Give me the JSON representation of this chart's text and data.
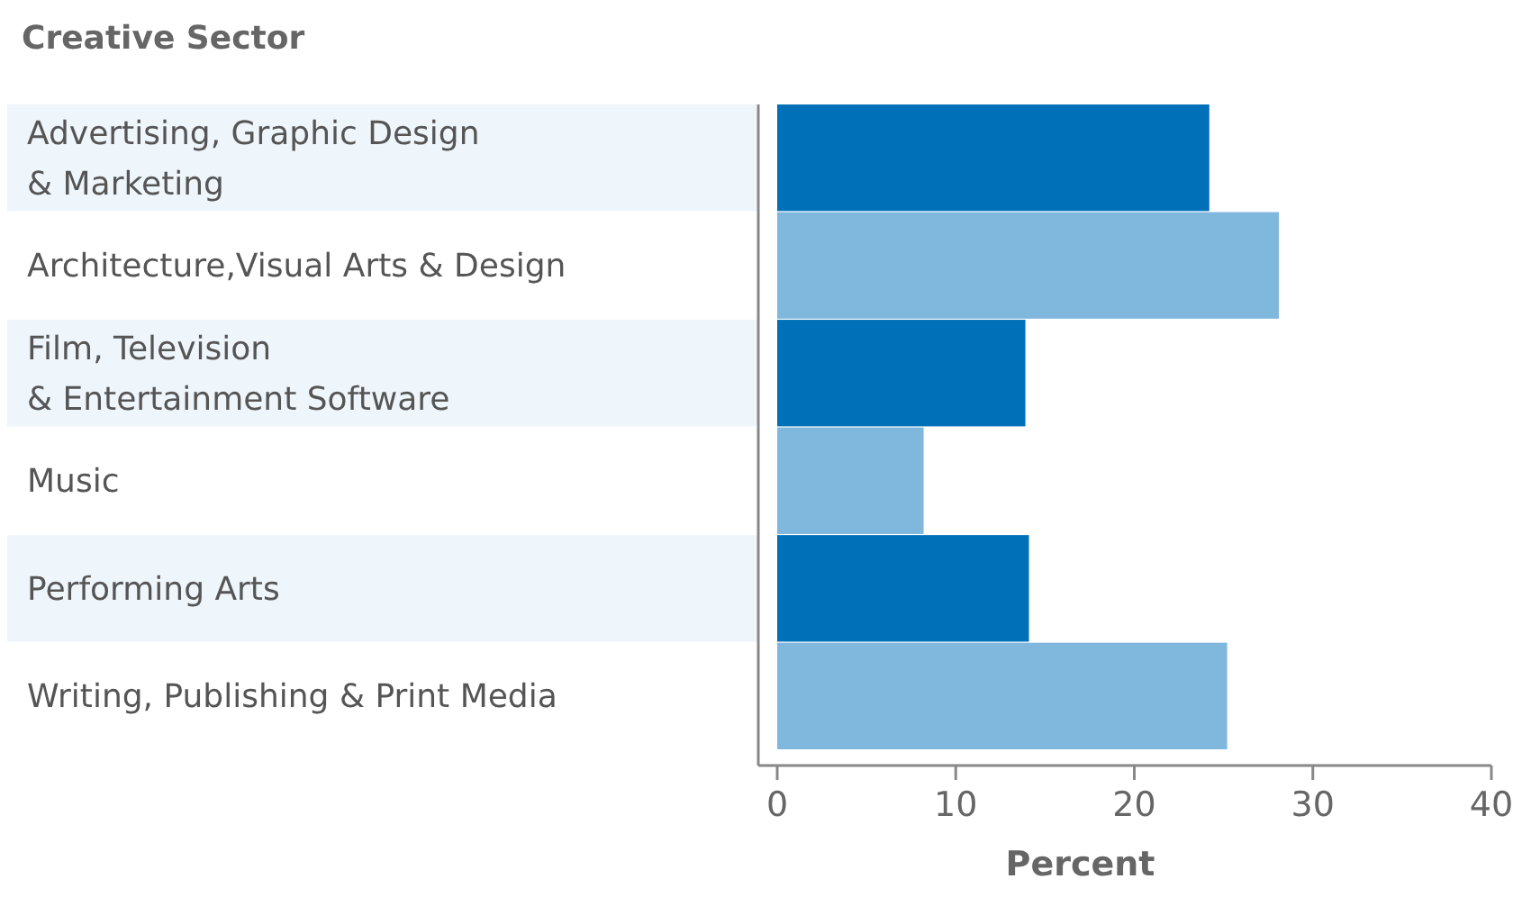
{
  "chart_data": {
    "type": "bar",
    "orientation": "horizontal",
    "title": "Creative Sector",
    "xlabel": "Percent",
    "categories": [
      "Advertising, Graphic Design & Marketing",
      "Architecture,Visual Arts & Design",
      "Film, Television & Entertainment Software",
      "Music",
      "Performing Arts",
      "Writing, Publishing & Print Media"
    ],
    "values": [
      24.2,
      28.1,
      13.9,
      8.2,
      14.1,
      25.2
    ],
    "colors": [
      "#0070b8",
      "#80b8dd",
      "#0070b8",
      "#80b8dd",
      "#0070b8",
      "#80b8dd"
    ],
    "xlim": [
      0,
      40
    ],
    "xticks": [
      0,
      10,
      20,
      30,
      40
    ],
    "grid": false
  }
}
